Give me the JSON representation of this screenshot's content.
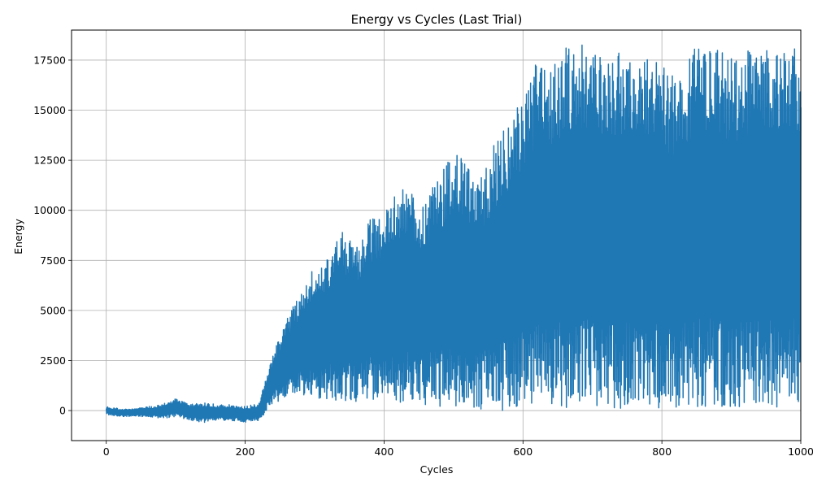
{
  "chart_data": {
    "type": "line",
    "title": "Energy vs Cycles (Last Trial)",
    "xlabel": "Cycles",
    "ylabel": "Energy",
    "xlim": [
      -50,
      1000
    ],
    "ylim": [
      -1500,
      19000
    ],
    "xticks": [
      0,
      200,
      400,
      600,
      800,
      1000
    ],
    "yticks": [
      0,
      2500,
      5000,
      7500,
      10000,
      12500,
      15000,
      17500
    ],
    "grid": true,
    "line_color": "#1f77b4",
    "series": [
      {
        "x": [
          0,
          20,
          40,
          60,
          80,
          100,
          120,
          140,
          160,
          180,
          200,
          220,
          240,
          260,
          280,
          300,
          320,
          340,
          360,
          380,
          400,
          420,
          440,
          460,
          480,
          500,
          520,
          540,
          560,
          580,
          600,
          620,
          640,
          660,
          680,
          700,
          720,
          740,
          760,
          780,
          800,
          820,
          840,
          860,
          880,
          900,
          920,
          940,
          960,
          980,
          1000
        ],
        "upper": [
          200,
          100,
          100,
          200,
          300,
          600,
          300,
          400,
          300,
          300,
          200,
          400,
          2900,
          4700,
          5800,
          7500,
          7700,
          9000,
          8200,
          9700,
          9900,
          11100,
          10900,
          10600,
          11700,
          13200,
          12500,
          11800,
          13500,
          14400,
          15600,
          17800,
          17200,
          18100,
          18400,
          17900,
          18000,
          18200,
          18400,
          17700,
          17300,
          16600,
          18000,
          18200,
          18300,
          17800,
          18000,
          18300,
          18200,
          18100,
          18100
        ],
        "lower": [
          -200,
          -300,
          -300,
          -300,
          -400,
          -300,
          -500,
          -600,
          -500,
          -500,
          -600,
          -500,
          300,
          700,
          700,
          600,
          500,
          500,
          400,
          500,
          400,
          300,
          300,
          300,
          200,
          200,
          100,
          0,
          -50,
          0,
          100,
          100,
          100,
          100,
          100,
          100,
          100,
          100,
          100,
          100,
          0,
          100,
          100,
          100,
          100,
          100,
          100,
          100,
          100,
          100,
          500
        ]
      }
    ]
  }
}
